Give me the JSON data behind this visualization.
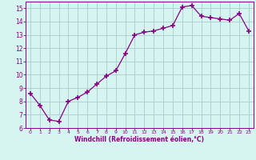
{
  "x": [
    0,
    1,
    2,
    3,
    4,
    5,
    6,
    7,
    8,
    9,
    10,
    11,
    12,
    13,
    14,
    15,
    16,
    17,
    18,
    19,
    20,
    21,
    22,
    23
  ],
  "y": [
    8.6,
    7.7,
    6.6,
    6.5,
    8.0,
    8.3,
    8.7,
    9.3,
    9.9,
    10.3,
    11.6,
    13.0,
    13.2,
    13.3,
    13.5,
    13.7,
    15.1,
    15.2,
    14.4,
    14.3,
    14.2,
    14.1,
    14.6,
    13.3
  ],
  "line_color": "#880088",
  "marker": "+",
  "marker_size": 4,
  "bg_color": "#d6f5f0",
  "grid_color": "#aacccc",
  "xlabel": "Windchill (Refroidissement éolien,°C)",
  "xlabel_color": "#880088",
  "tick_color": "#880088",
  "ylim": [
    6,
    15.5
  ],
  "yticks": [
    6,
    7,
    8,
    9,
    10,
    11,
    12,
    13,
    14,
    15
  ],
  "xlim": [
    -0.5,
    23.5
  ],
  "xticks": [
    0,
    1,
    2,
    3,
    4,
    5,
    6,
    7,
    8,
    9,
    10,
    11,
    12,
    13,
    14,
    15,
    16,
    17,
    18,
    19,
    20,
    21,
    22,
    23
  ],
  "spine_color": "#880088",
  "figsize": [
    3.2,
    2.0
  ],
  "dpi": 100
}
